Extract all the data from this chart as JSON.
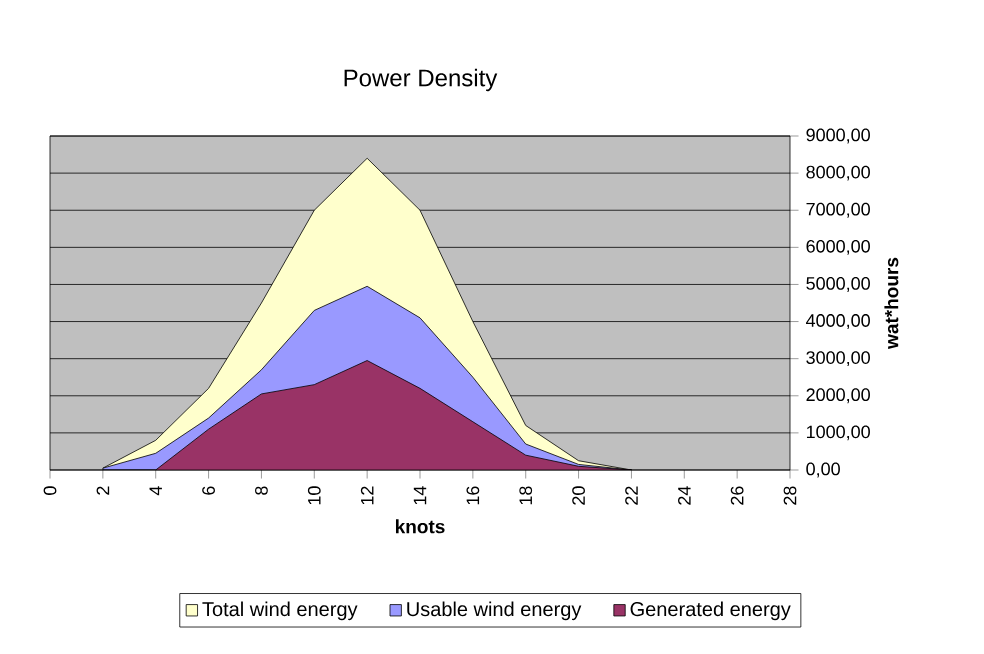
{
  "chart_data": {
    "type": "area",
    "title": "Power Density",
    "xlabel": "knots",
    "ylabel": "wat*hours",
    "x": [
      2,
      4,
      6,
      8,
      10,
      12,
      14,
      16,
      18,
      20,
      22
    ],
    "series": [
      {
        "name": "Total wind energy",
        "color": "#ffffcc",
        "values": [
          50,
          800,
          2200,
          4500,
          7000,
          8400,
          7000,
          4000,
          1200,
          250,
          0
        ]
      },
      {
        "name": "Usable wind energy",
        "color": "#9999ff",
        "values": [
          50,
          450,
          1400,
          2700,
          4300,
          4950,
          4100,
          2500,
          700,
          150,
          0
        ]
      },
      {
        "name": "Generated energy",
        "color": "#993366",
        "values": [
          0,
          0,
          1100,
          2050,
          2300,
          2950,
          2200,
          1300,
          400,
          100,
          0
        ]
      }
    ],
    "xlim": [
      0,
      28
    ],
    "xticks": [
      0,
      2,
      4,
      6,
      8,
      10,
      12,
      14,
      16,
      18,
      20,
      22,
      24,
      26,
      28
    ],
    "ylim": [
      0,
      9000
    ],
    "yticks": [
      {
        "value": 0,
        "label": "0,00"
      },
      {
        "value": 1000,
        "label": "1000,00"
      },
      {
        "value": 2000,
        "label": "2000,00"
      },
      {
        "value": 3000,
        "label": "3000,00"
      },
      {
        "value": 4000,
        "label": "4000,00"
      },
      {
        "value": 5000,
        "label": "5000,00"
      },
      {
        "value": 6000,
        "label": "6000,00"
      },
      {
        "value": 7000,
        "label": "7000,00"
      },
      {
        "value": 8000,
        "label": "8000,00"
      },
      {
        "value": 9000,
        "label": "9000,00"
      }
    ],
    "grid": "y",
    "legend": "bottom"
  }
}
